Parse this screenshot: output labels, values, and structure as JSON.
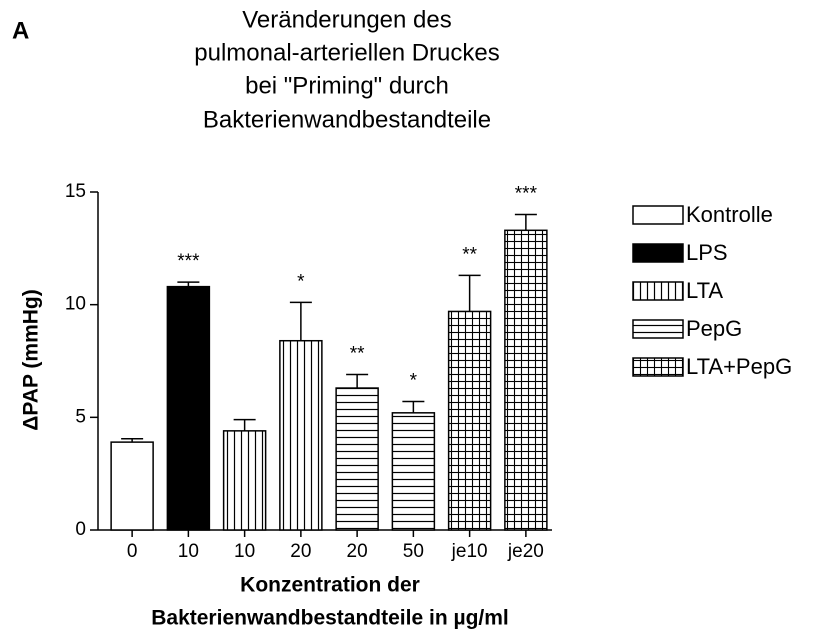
{
  "chart_data": {
    "type": "bar",
    "panel_label": "A",
    "title": [
      "Veränderungen des",
      "pulmonal-arteriellen Druckes",
      "bei \"Priming\" durch",
      "Bakterienwandbestandteile"
    ],
    "y_label": "ΔPAP (mmHg)",
    "x_label": [
      "Konzentration der",
      "Bakterienwandbestandteile in µg/ml"
    ],
    "categories": [
      "0",
      "10",
      "10",
      "20",
      "20",
      "50",
      "je10",
      "je20"
    ],
    "ylim": [
      0,
      15
    ],
    "yticks": [
      0,
      5,
      10,
      15
    ],
    "legend": "right",
    "series": [
      {
        "name": "Kontrolle",
        "pattern": "none",
        "values": [
          3.9,
          null,
          null,
          null,
          null,
          null,
          null,
          null
        ],
        "errors": [
          0.15,
          null,
          null,
          null,
          null,
          null,
          null,
          null
        ],
        "annotations": [
          null,
          null,
          null,
          null,
          null,
          null,
          null,
          null
        ]
      },
      {
        "name": "LPS",
        "pattern": "solid",
        "values": [
          null,
          10.8,
          null,
          null,
          null,
          null,
          null,
          null
        ],
        "errors": [
          null,
          0.2,
          null,
          null,
          null,
          null,
          null,
          null
        ],
        "annotations": [
          null,
          "***",
          null,
          null,
          null,
          null,
          null,
          null
        ]
      },
      {
        "name": "LTA",
        "pattern": "vertical",
        "values": [
          null,
          null,
          4.4,
          8.4,
          null,
          null,
          null,
          null
        ],
        "errors": [
          null,
          null,
          0.5,
          1.7,
          null,
          null,
          null,
          null
        ],
        "annotations": [
          null,
          null,
          null,
          "*",
          null,
          null,
          null,
          null
        ]
      },
      {
        "name": "PepG",
        "pattern": "horizontal",
        "values": [
          null,
          null,
          null,
          null,
          6.3,
          5.2,
          null,
          null
        ],
        "errors": [
          null,
          null,
          null,
          null,
          0.6,
          0.5,
          null,
          null
        ],
        "annotations": [
          null,
          null,
          null,
          null,
          "**",
          "*",
          null,
          null
        ]
      },
      {
        "name": "LTA+PepG",
        "pattern": "grid",
        "values": [
          null,
          null,
          null,
          null,
          null,
          null,
          9.7,
          13.3
        ],
        "errors": [
          null,
          null,
          null,
          null,
          null,
          null,
          1.6,
          0.7
        ],
        "annotations": [
          null,
          null,
          null,
          null,
          null,
          null,
          "**",
          "***"
        ]
      }
    ]
  }
}
